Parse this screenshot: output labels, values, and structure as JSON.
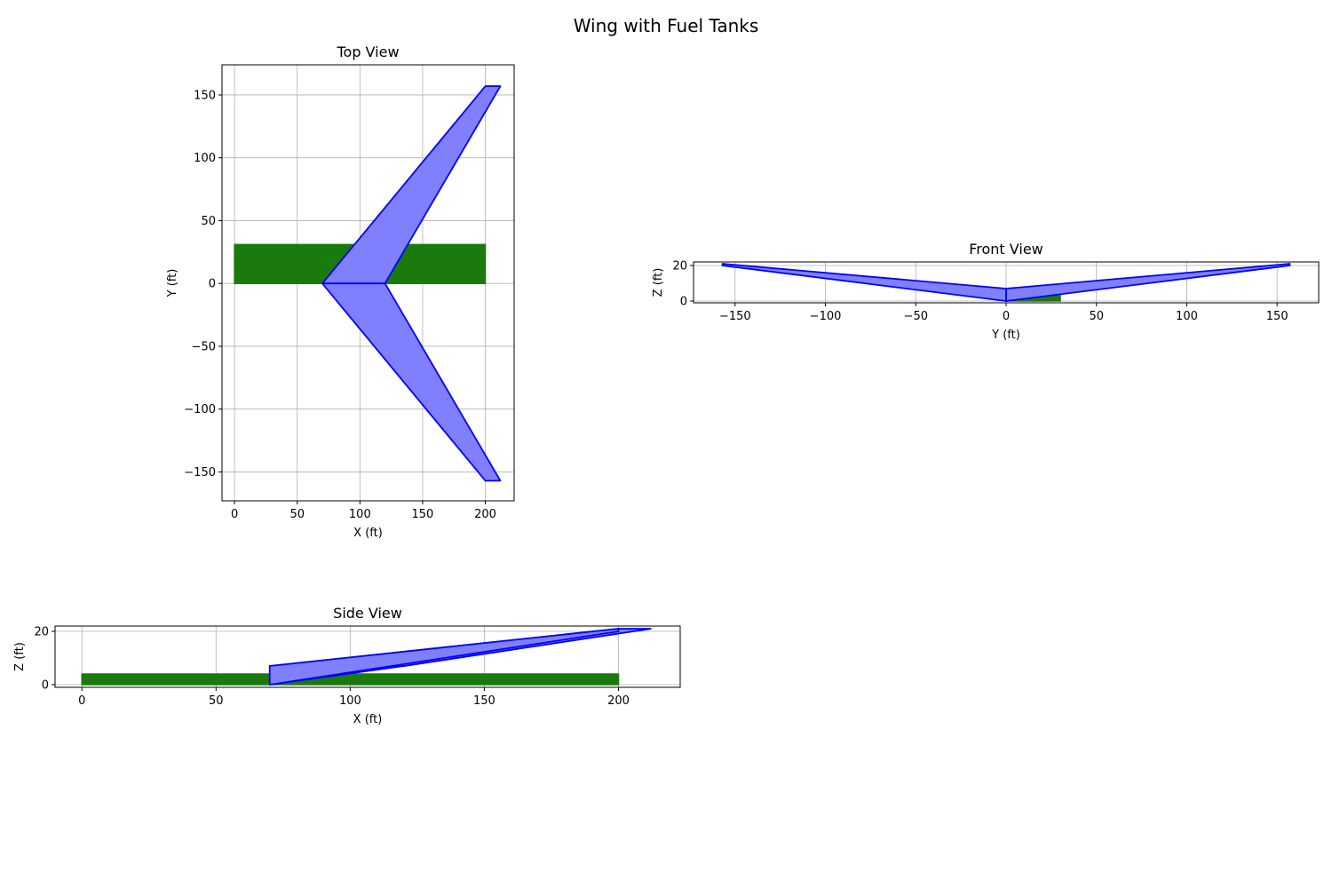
{
  "figure": {
    "title": "Wing with Fuel Tanks"
  },
  "colors": {
    "wing_fill": "#8080ff",
    "wing_edge": "#0000ff",
    "tank_fill": "#1a7a0d",
    "grid": "#b0b0b0"
  },
  "chart_data": [
    {
      "id": "top",
      "type": "area",
      "title": "Top View",
      "xlabel": "X (ft)",
      "ylabel": "Y (ft)",
      "xlim": [
        -10,
        223
      ],
      "ylim": [
        -173,
        174
      ],
      "xticks": [
        0,
        50,
        100,
        150,
        200
      ],
      "yticks": [
        -150,
        -100,
        -50,
        0,
        50,
        100,
        150
      ],
      "grid": true,
      "series": [
        {
          "kind": "tank",
          "points": [
            [
              0,
              0
            ],
            [
              200,
              0
            ],
            [
              200,
              31
            ],
            [
              0,
              31
            ]
          ]
        },
        {
          "kind": "wing",
          "points": [
            [
              70,
              0
            ],
            [
              120,
              0
            ],
            [
              212,
              157
            ],
            [
              200,
              157
            ]
          ]
        },
        {
          "kind": "wing",
          "points": [
            [
              70,
              0
            ],
            [
              120,
              0
            ],
            [
              212,
              -157
            ],
            [
              200,
              -157
            ]
          ]
        }
      ]
    },
    {
      "id": "front",
      "type": "area",
      "title": "Front View",
      "xlabel": "Y (ft)",
      "ylabel": "Z (ft)",
      "xlim": [
        -173,
        173
      ],
      "ylim": [
        -1,
        22
      ],
      "xticks": [
        -150,
        -100,
        -50,
        0,
        50,
        100,
        150
      ],
      "yticks": [
        0,
        20
      ],
      "grid": true,
      "series": [
        {
          "kind": "tank",
          "points": [
            [
              0,
              0
            ],
            [
              30,
              0
            ],
            [
              30,
              4
            ],
            [
              0,
              4
            ]
          ]
        },
        {
          "kind": "wing",
          "points": [
            [
              0,
              0
            ],
            [
              0,
              7
            ],
            [
              157,
              21
            ],
            [
              157,
              20
            ]
          ]
        },
        {
          "kind": "wing",
          "points": [
            [
              0,
              0
            ],
            [
              0,
              7
            ],
            [
              -157,
              21
            ],
            [
              -157,
              20
            ]
          ]
        }
      ]
    },
    {
      "id": "side",
      "type": "area",
      "title": "Side View",
      "xlabel": "X (ft)",
      "ylabel": "Z (ft)",
      "xlim": [
        -10,
        223
      ],
      "ylim": [
        -1,
        22
      ],
      "xticks": [
        0,
        50,
        100,
        150,
        200
      ],
      "yticks": [
        0,
        20
      ],
      "grid": true,
      "series": [
        {
          "kind": "tank",
          "points": [
            [
              0,
              0
            ],
            [
              200,
              0
            ],
            [
              200,
              4
            ],
            [
              0,
              4
            ]
          ]
        },
        {
          "kind": "wing",
          "points": [
            [
              70,
              0
            ],
            [
              120,
              7
            ],
            [
              212,
              21
            ],
            [
              200,
              20
            ]
          ]
        },
        {
          "kind": "wing",
          "points": [
            [
              70,
              7
            ],
            [
              120,
              7
            ],
            [
              212,
              21
            ],
            [
              200,
              21
            ]
          ]
        },
        {
          "kind": "wing",
          "points": [
            [
              70,
              0
            ],
            [
              70,
              7
            ],
            [
              200,
              21
            ],
            [
              200,
              20
            ]
          ]
        }
      ]
    }
  ]
}
